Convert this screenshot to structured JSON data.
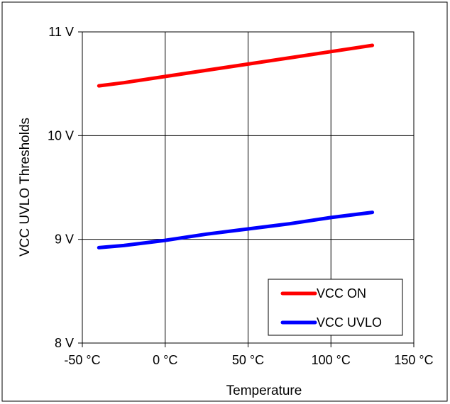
{
  "chart_data": {
    "type": "line",
    "title": "",
    "xlabel": "Temperature",
    "ylabel": "VCC UVLO Thresholds",
    "xlim": [
      -50,
      150
    ],
    "ylim": [
      8,
      11
    ],
    "x_ticks": [
      -50,
      0,
      50,
      100,
      150
    ],
    "x_tick_labels": [
      "-50 °C",
      "0 °C",
      "50 °C",
      "100 °C",
      "150 °C"
    ],
    "y_ticks": [
      8,
      9,
      10,
      11
    ],
    "y_tick_labels": [
      "8 V",
      "9 V",
      "10 V",
      "11 V"
    ],
    "grid": true,
    "legend_position": "bottom-right",
    "series": [
      {
        "name": "VCC ON",
        "color": "#ff0000",
        "x": [
          -40,
          -25,
          0,
          25,
          50,
          75,
          100,
          125
        ],
        "y": [
          10.48,
          10.51,
          10.57,
          10.63,
          10.69,
          10.75,
          10.81,
          10.87
        ]
      },
      {
        "name": "VCC UVLO",
        "color": "#0000ff",
        "x": [
          -40,
          -25,
          0,
          25,
          50,
          75,
          100,
          125
        ],
        "y": [
          8.92,
          8.94,
          8.99,
          9.05,
          9.1,
          9.15,
          9.21,
          9.26
        ]
      }
    ]
  }
}
